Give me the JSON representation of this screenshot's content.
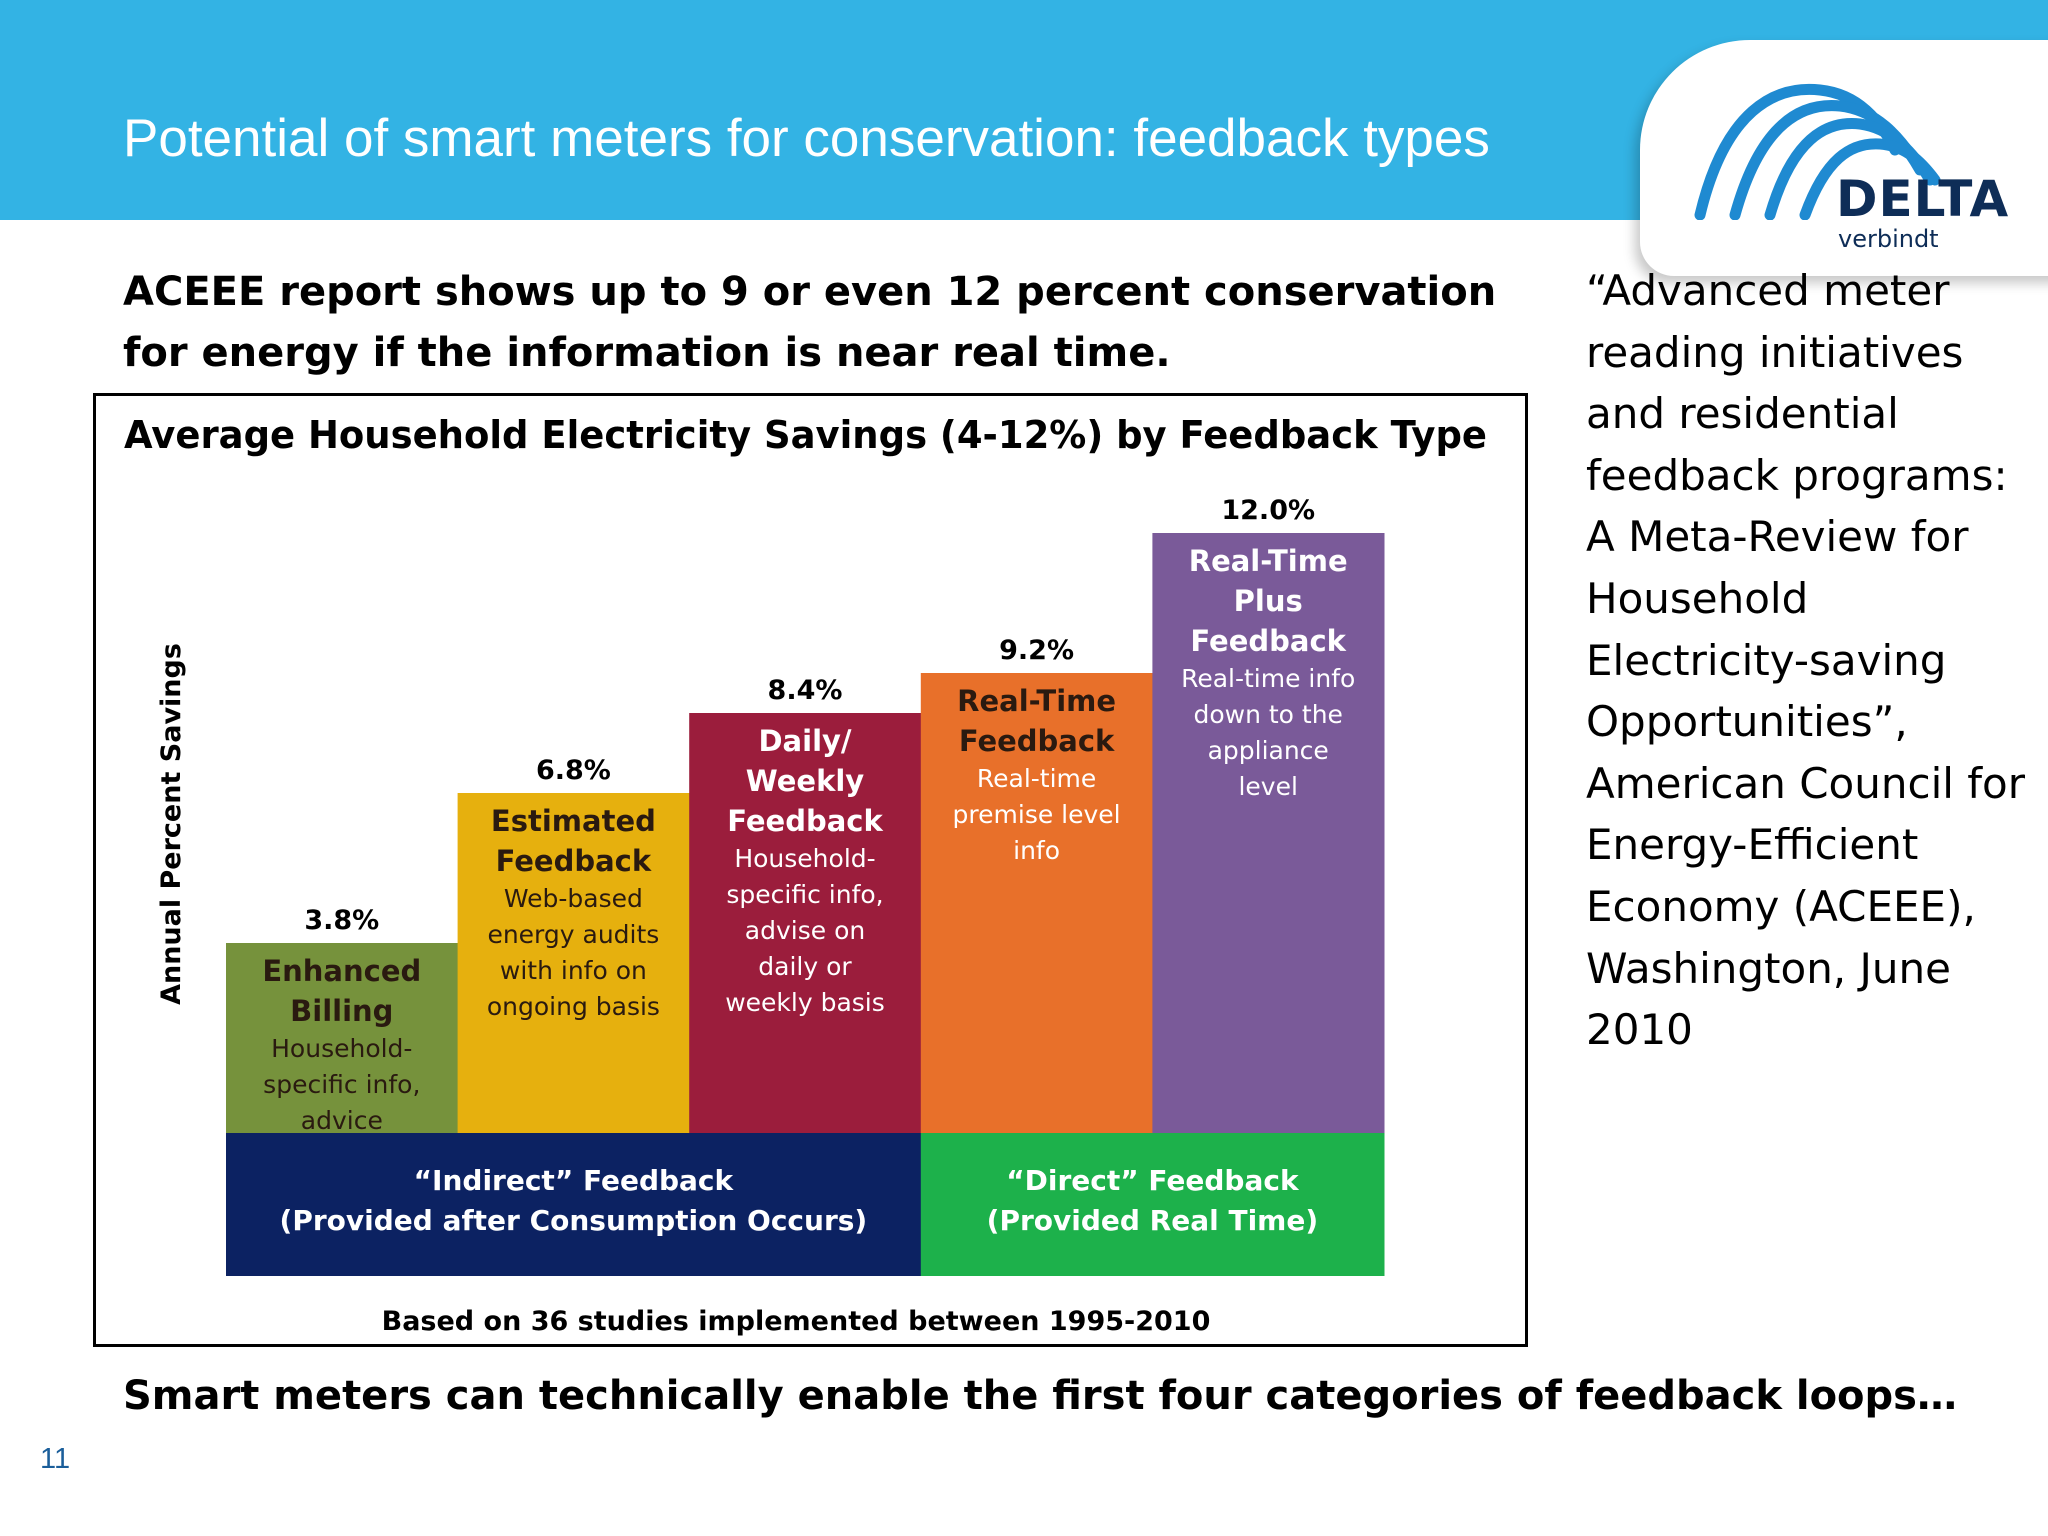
{
  "slide": {
    "title": "Potential of smart meters for conservation: feedback types",
    "lead": "ACEEE report shows up to 9 or even 12 percent conservation for energy if the information is near real time.",
    "citation": "“Advanced meter reading initiatives and residential feedback programs: A Meta-Review for Household Electricity-saving Opportunities”, American Council for Energy-Efficient Economy (ACEEE), Washington, June 2010",
    "bottom": "Smart meters can technically enable the first four categories of feedback loops…",
    "number": "11"
  },
  "logo": {
    "word": "DELTA",
    "sub": "verbindt",
    "colors": {
      "arc": "#1f8ad1",
      "text": "#0e2d57"
    }
  },
  "chart_data": {
    "type": "bar",
    "title": "Average Household Electricity Savings (4-12%) by Feedback Type",
    "ylabel": "Annual Percent Savings",
    "footnote": "Based on 36 studies implemented between 1995-2010",
    "ylim": [
      0,
      12
    ],
    "grid": false,
    "bars": [
      {
        "value": 3.8,
        "label": "3.8%",
        "title": [
          "Enhanced",
          "Billing"
        ],
        "desc": [
          "Household-",
          "specific info,",
          "advice"
        ],
        "color": "#76923c"
      },
      {
        "value": 6.8,
        "label": "6.8%",
        "title": [
          "Estimated",
          "Feedback"
        ],
        "desc": [
          "Web-based",
          "energy audits",
          "with info on",
          "ongoing basis"
        ],
        "color": "#e6b00e"
      },
      {
        "value": 8.4,
        "label": "8.4%",
        "title": [
          "Daily/",
          "Weekly",
          "Feedback"
        ],
        "desc": [
          "Household-",
          "specific info,",
          "advise on",
          "daily or",
          "weekly basis"
        ],
        "color": "#9b1d3c"
      },
      {
        "value": 9.2,
        "label": "9.2%",
        "title": [
          "Real-Time",
          "Feedback"
        ],
        "desc": [
          "Real-time",
          "premise level",
          "info"
        ],
        "color": "#e8702a"
      },
      {
        "value": 12.0,
        "label": "12.0%",
        "title": [
          "Real-Time",
          "Plus",
          "Feedback"
        ],
        "desc": [
          "Real-time info",
          "down to the",
          "appliance",
          "level"
        ],
        "color": "#7a5a99"
      }
    ],
    "groups": [
      {
        "lines": [
          "“Indirect” Feedback",
          "(Provided after Consumption Occurs)"
        ],
        "bars": [
          0,
          1,
          2
        ],
        "color": "#0c2262"
      },
      {
        "lines": [
          "“Direct” Feedback",
          "(Provided Real Time)"
        ],
        "bars": [
          3,
          4
        ],
        "color": "#1db14b"
      }
    ]
  }
}
